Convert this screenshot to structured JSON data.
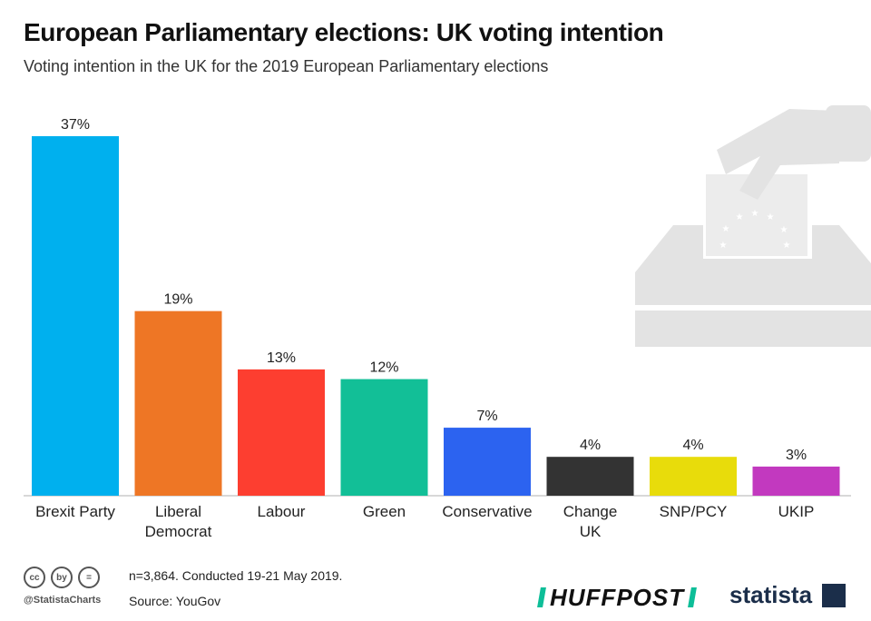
{
  "header": {
    "title": "European Parliamentary elections: UK voting intention",
    "subtitle": "Voting intention in the UK for the 2019 European Parliamentary elections"
  },
  "chart_data": {
    "type": "bar",
    "title": "European Parliamentary elections: UK voting intention",
    "subtitle": "Voting intention in the UK for the 2019 European Parliamentary elections",
    "categories": [
      "Brexit Party",
      "Liberal Democrat",
      "Labour",
      "Green",
      "Conservative",
      "Change UK",
      "SNP/PCY",
      "UKIP"
    ],
    "category_lines": [
      [
        "Brexit Party"
      ],
      [
        "Liberal",
        "Democrat"
      ],
      [
        "Labour"
      ],
      [
        "Green"
      ],
      [
        "Conservative"
      ],
      [
        "Change",
        "UK"
      ],
      [
        "SNP/PCY"
      ],
      [
        "UKIP"
      ]
    ],
    "values": [
      37,
      19,
      13,
      12,
      7,
      4,
      4,
      3
    ],
    "value_labels": [
      "37%",
      "19%",
      "13%",
      "12%",
      "7%",
      "4%",
      "4%",
      "3%"
    ],
    "colors": [
      "#00b0ee",
      "#ee7625",
      "#fd3e30",
      "#12bf97",
      "#2c63f0",
      "#333333",
      "#e8dc0b",
      "#c239bf"
    ],
    "unit": "%",
    "ylim": [
      0,
      37
    ],
    "xlabel": "",
    "ylabel": "",
    "grid": false,
    "legend": "none"
  },
  "footer": {
    "note": "n=3,864. Conducted 19-21 May 2019.",
    "source": "Source: YouGov",
    "handle": "@StatistaCharts",
    "cc_icons": [
      "cc",
      "by",
      "="
    ],
    "publisher_logo": "HUFFPOST",
    "brand_logo": "statista"
  },
  "illustration": {
    "icon": "ballot-box-icon",
    "color": "#e3e3e3"
  }
}
